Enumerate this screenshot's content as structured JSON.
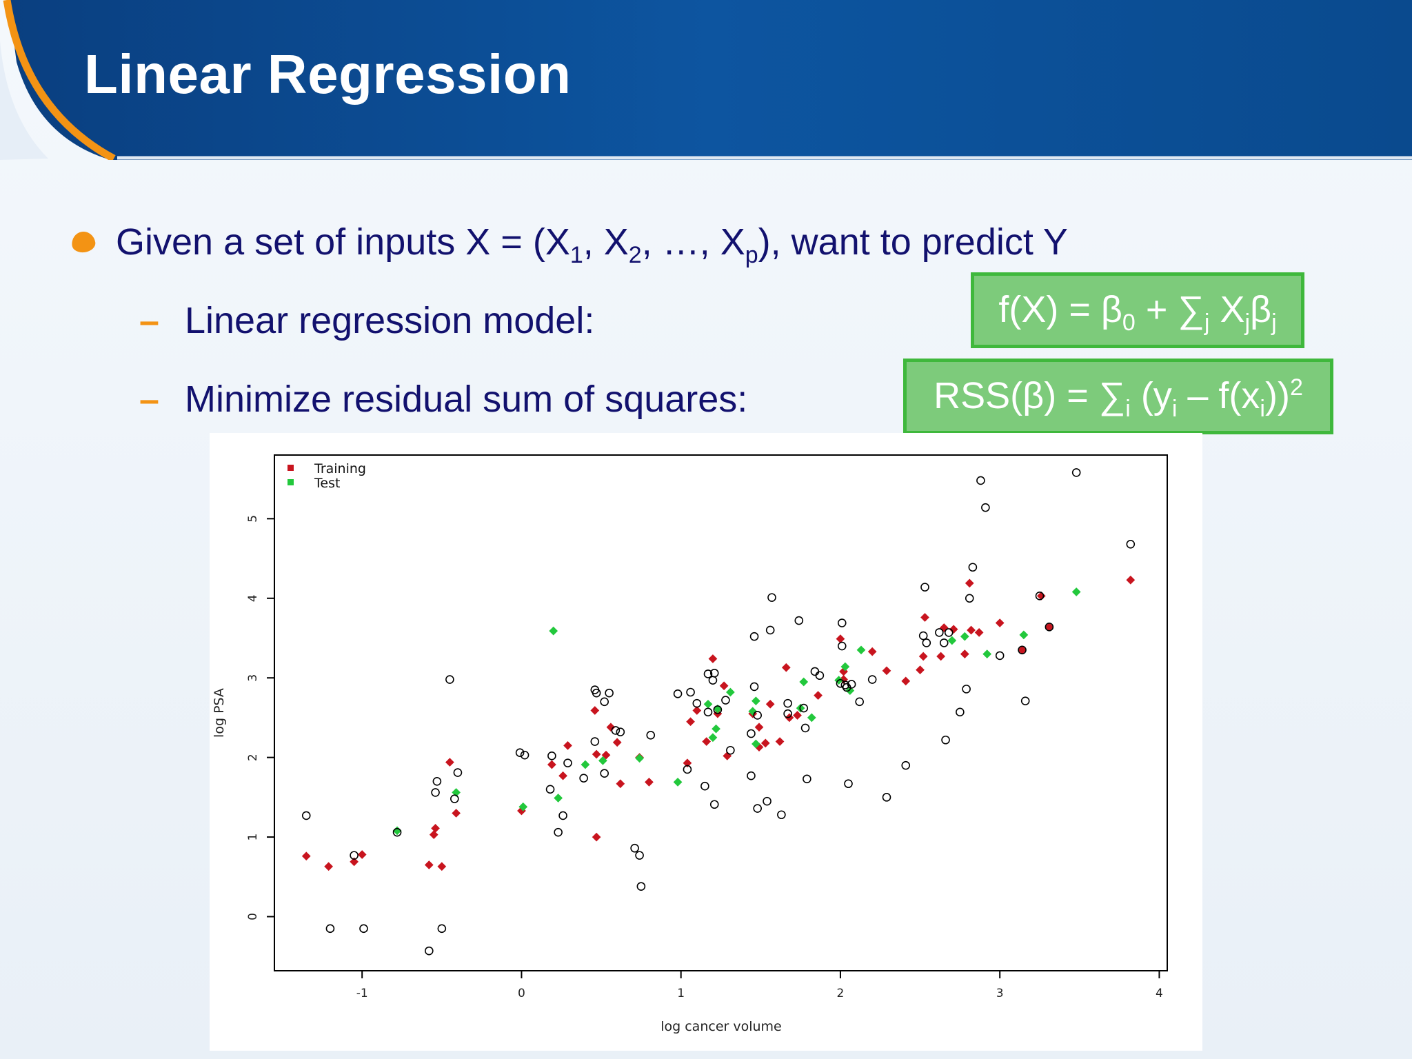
{
  "slide": {
    "title": "Linear Regression",
    "bullet": {
      "pre": "Given a set of inputs X = (X",
      "s1": "1",
      "c1": ", X",
      "s2": "2",
      "c2": ", …, X",
      "sp": "p",
      "post": "), want to predict Y"
    },
    "items": [
      {
        "label": "Linear regression model:"
      },
      {
        "label": "Minimize residual sum of squares:"
      }
    ],
    "formula1": {
      "a": "f(X) = β",
      "s0": "0",
      "b": " + ∑",
      "sj": "j",
      "c": " X",
      "sj2": "j",
      "d": "β",
      "sj3": "j"
    },
    "formula2": {
      "a": "RSS(β) = ∑",
      "si": "i",
      "b": " (y",
      "si2": "i",
      "c": " – f(x",
      "si3": "i",
      "d": "))",
      "sup": "2"
    },
    "colors": {
      "header": "#0a4a8e",
      "accent": "#f39314",
      "text": "#12116e",
      "box": "#7dcb7b"
    }
  },
  "chart_data": {
    "type": "scatter",
    "xlabel": "log cancer volume",
    "ylabel": "log PSA",
    "xlim": [
      -1.55,
      4.05
    ],
    "ylim": [
      -0.68,
      5.8
    ],
    "xticks": [
      -1,
      0,
      1,
      2,
      3,
      4
    ],
    "yticks": [
      0,
      1,
      2,
      3,
      4,
      5
    ],
    "legend": {
      "position": "top-left",
      "entries": [
        "Training",
        "Test"
      ]
    },
    "series": [
      {
        "name": "Training",
        "marker": "filled",
        "color": "#c8141e",
        "points": [
          [
            -1.35,
            0.76
          ],
          [
            -1.21,
            0.63
          ],
          [
            -1.05,
            0.69
          ],
          [
            -1.0,
            0.78
          ],
          [
            -0.58,
            0.65
          ],
          [
            -0.5,
            0.63
          ],
          [
            -0.55,
            1.03
          ],
          [
            -0.54,
            1.11
          ],
          [
            -0.45,
            1.94
          ],
          [
            -0.41,
            1.3
          ],
          [
            0.0,
            1.33
          ],
          [
            0.19,
            1.91
          ],
          [
            0.26,
            1.77
          ],
          [
            0.29,
            2.15
          ],
          [
            0.46,
            2.59
          ],
          [
            0.47,
            2.04
          ],
          [
            0.53,
            2.03
          ],
          [
            0.56,
            2.38
          ],
          [
            0.6,
            2.19
          ],
          [
            0.62,
            1.67
          ],
          [
            0.74,
            2.0
          ],
          [
            0.8,
            1.69
          ],
          [
            0.47,
            1.0
          ],
          [
            1.04,
            1.93
          ],
          [
            1.06,
            2.45
          ],
          [
            1.1,
            2.59
          ],
          [
            1.16,
            2.2
          ],
          [
            1.2,
            3.24
          ],
          [
            1.23,
            2.55
          ],
          [
            1.27,
            2.9
          ],
          [
            1.29,
            2.02
          ],
          [
            1.45,
            2.55
          ],
          [
            1.49,
            2.38
          ],
          [
            1.49,
            2.13
          ],
          [
            1.53,
            2.18
          ],
          [
            1.56,
            2.67
          ],
          [
            1.62,
            2.2
          ],
          [
            1.66,
            3.13
          ],
          [
            1.68,
            2.5
          ],
          [
            1.73,
            2.53
          ],
          [
            1.86,
            2.78
          ],
          [
            2.0,
            3.49
          ],
          [
            2.02,
            3.08
          ],
          [
            2.02,
            2.98
          ],
          [
            2.2,
            3.33
          ],
          [
            2.29,
            3.09
          ],
          [
            2.41,
            2.96
          ],
          [
            2.5,
            3.1
          ],
          [
            2.52,
            3.27
          ],
          [
            2.53,
            3.76
          ],
          [
            2.63,
            3.27
          ],
          [
            2.65,
            3.63
          ],
          [
            2.71,
            3.61
          ],
          [
            2.78,
            3.3
          ],
          [
            2.81,
            4.19
          ],
          [
            2.82,
            3.6
          ],
          [
            2.87,
            3.57
          ],
          [
            3.0,
            3.69
          ],
          [
            3.14,
            3.35
          ],
          [
            3.26,
            4.03
          ],
          [
            3.31,
            3.64
          ],
          [
            3.82,
            4.23
          ]
        ]
      },
      {
        "name": "Test",
        "marker": "filled",
        "color": "#22c83c",
        "points": [
          [
            -0.78,
            1.08
          ],
          [
            -0.41,
            1.56
          ],
          [
            0.01,
            1.38
          ],
          [
            0.23,
            1.49
          ],
          [
            0.4,
            1.91
          ],
          [
            0.2,
            3.59
          ],
          [
            0.51,
            1.96
          ],
          [
            0.74,
            1.99
          ],
          [
            0.98,
            1.69
          ],
          [
            1.17,
            2.67
          ],
          [
            1.2,
            2.25
          ],
          [
            1.22,
            2.36
          ],
          [
            1.23,
            2.61
          ],
          [
            1.31,
            2.82
          ],
          [
            1.45,
            2.58
          ],
          [
            1.47,
            2.71
          ],
          [
            1.47,
            2.17
          ],
          [
            1.75,
            2.62
          ],
          [
            1.77,
            2.95
          ],
          [
            1.82,
            2.5
          ],
          [
            1.99,
            2.97
          ],
          [
            2.03,
            3.14
          ],
          [
            2.06,
            2.84
          ],
          [
            2.13,
            3.35
          ],
          [
            2.7,
            3.47
          ],
          [
            2.78,
            3.52
          ],
          [
            2.92,
            3.3
          ],
          [
            3.15,
            3.54
          ],
          [
            3.48,
            4.08
          ]
        ]
      },
      {
        "name": "",
        "marker": "open",
        "color": "#000000",
        "points": [
          [
            -1.35,
            1.27
          ],
          [
            -1.2,
            -0.15
          ],
          [
            -1.05,
            0.77
          ],
          [
            -0.99,
            -0.15
          ],
          [
            -0.78,
            1.06
          ],
          [
            -0.58,
            -0.43
          ],
          [
            -0.54,
            1.56
          ],
          [
            -0.53,
            1.7
          ],
          [
            -0.5,
            -0.15
          ],
          [
            -0.45,
            2.98
          ],
          [
            -0.42,
            1.48
          ],
          [
            -0.4,
            1.81
          ],
          [
            -0.01,
            2.06
          ],
          [
            0.02,
            2.03
          ],
          [
            0.18,
            1.6
          ],
          [
            0.19,
            2.02
          ],
          [
            0.23,
            1.06
          ],
          [
            0.26,
            1.27
          ],
          [
            0.29,
            1.93
          ],
          [
            0.39,
            1.74
          ],
          [
            0.46,
            2.2
          ],
          [
            0.46,
            2.85
          ],
          [
            0.47,
            2.81
          ],
          [
            0.52,
            2.7
          ],
          [
            0.52,
            1.8
          ],
          [
            0.55,
            2.81
          ],
          [
            0.59,
            2.34
          ],
          [
            0.62,
            2.32
          ],
          [
            0.71,
            0.86
          ],
          [
            0.74,
            0.77
          ],
          [
            0.75,
            0.38
          ],
          [
            0.81,
            2.28
          ],
          [
            0.98,
            2.8
          ],
          [
            1.04,
            1.85
          ],
          [
            1.06,
            2.82
          ],
          [
            1.1,
            2.68
          ],
          [
            1.15,
            1.64
          ],
          [
            1.17,
            3.05
          ],
          [
            1.17,
            2.57
          ],
          [
            1.2,
            2.97
          ],
          [
            1.21,
            3.06
          ],
          [
            1.21,
            1.41
          ],
          [
            1.23,
            2.6
          ],
          [
            1.28,
            2.72
          ],
          [
            1.31,
            2.09
          ],
          [
            1.44,
            2.3
          ],
          [
            1.44,
            1.77
          ],
          [
            1.46,
            2.89
          ],
          [
            1.46,
            3.52
          ],
          [
            1.48,
            1.36
          ],
          [
            1.48,
            2.53
          ],
          [
            1.54,
            1.45
          ],
          [
            1.56,
            3.6
          ],
          [
            1.57,
            4.01
          ],
          [
            1.63,
            1.28
          ],
          [
            1.67,
            2.68
          ],
          [
            1.67,
            2.55
          ],
          [
            1.74,
            3.72
          ],
          [
            1.77,
            2.62
          ],
          [
            1.78,
            2.37
          ],
          [
            1.79,
            1.73
          ],
          [
            1.84,
            3.08
          ],
          [
            1.87,
            3.03
          ],
          [
            2.0,
            2.93
          ],
          [
            2.01,
            3.4
          ],
          [
            2.01,
            3.69
          ],
          [
            2.03,
            2.91
          ],
          [
            2.04,
            2.88
          ],
          [
            2.05,
            1.67
          ],
          [
            2.07,
            2.92
          ],
          [
            2.12,
            2.7
          ],
          [
            2.2,
            2.98
          ],
          [
            2.29,
            1.5
          ],
          [
            2.41,
            1.9
          ],
          [
            2.52,
            3.53
          ],
          [
            2.53,
            4.14
          ],
          [
            2.54,
            3.44
          ],
          [
            2.62,
            3.57
          ],
          [
            2.65,
            3.44
          ],
          [
            2.66,
            2.22
          ],
          [
            2.68,
            3.57
          ],
          [
            2.75,
            2.57
          ],
          [
            2.79,
            2.86
          ],
          [
            2.81,
            4.0
          ],
          [
            2.83,
            4.39
          ],
          [
            2.88,
            5.48
          ],
          [
            2.91,
            5.14
          ],
          [
            3.0,
            3.28
          ],
          [
            3.14,
            3.35
          ],
          [
            3.16,
            2.71
          ],
          [
            3.25,
            4.03
          ],
          [
            3.31,
            3.64
          ],
          [
            3.48,
            5.58
          ],
          [
            3.82,
            4.68
          ]
        ]
      }
    ]
  }
}
